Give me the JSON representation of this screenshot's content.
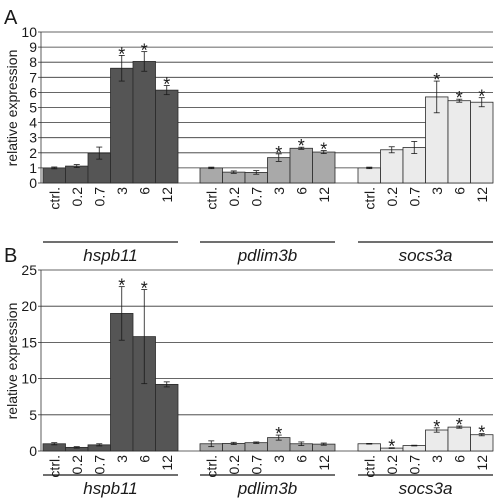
{
  "chart_data": [
    {
      "panel_label": "A",
      "type": "bar",
      "ylabel": "relative expression",
      "ylim": [
        0,
        10
      ],
      "yticks": [
        0,
        1,
        2,
        3,
        4,
        5,
        6,
        7,
        8,
        9,
        10
      ],
      "grid": true,
      "conditions": [
        "ctrl.",
        "0.2",
        "0.7",
        "3",
        "6",
        "12"
      ],
      "groups": [
        {
          "name": "hspb11",
          "color": "#555555",
          "values": [
            1.0,
            1.12,
            1.98,
            7.6,
            8.05,
            6.15
          ],
          "errors": [
            0.06,
            0.1,
            0.4,
            0.85,
            0.65,
            0.3
          ],
          "significant": [
            false,
            false,
            false,
            true,
            true,
            true
          ]
        },
        {
          "name": "pdlim3b",
          "color": "#a9a9a9",
          "values": [
            1.0,
            0.72,
            0.7,
            1.68,
            2.3,
            2.05
          ],
          "errors": [
            0.05,
            0.08,
            0.12,
            0.25,
            0.07,
            0.1
          ],
          "significant": [
            false,
            false,
            false,
            true,
            true,
            true
          ]
        },
        {
          "name": "socs3a",
          "color": "#ebebeb",
          "values": [
            1.0,
            2.2,
            2.35,
            5.7,
            5.45,
            5.35
          ],
          "errors": [
            0.05,
            0.2,
            0.4,
            1.05,
            0.1,
            0.3
          ],
          "significant": [
            false,
            false,
            false,
            true,
            true,
            true
          ]
        }
      ]
    },
    {
      "panel_label": "B",
      "type": "bar",
      "ylabel": "relative expression",
      "ylim": [
        0,
        25
      ],
      "yticks": [
        0,
        5,
        10,
        15,
        20,
        25
      ],
      "grid": true,
      "conditions": [
        "ctrl.",
        "0.2",
        "0.7",
        "3",
        "6",
        "12"
      ],
      "groups": [
        {
          "name": "hspb11",
          "color": "#555555",
          "values": [
            1.0,
            0.5,
            0.85,
            19.0,
            15.8,
            9.2
          ],
          "errors": [
            0.15,
            0.1,
            0.15,
            3.7,
            6.5,
            0.35
          ],
          "significant": [
            false,
            false,
            false,
            true,
            true,
            false
          ]
        },
        {
          "name": "pdlim3b",
          "color": "#a9a9a9",
          "values": [
            1.0,
            1.05,
            1.15,
            1.85,
            1.0,
            0.95
          ],
          "errors": [
            0.4,
            0.15,
            0.1,
            0.35,
            0.25,
            0.15
          ],
          "significant": [
            false,
            false,
            false,
            true,
            false,
            false
          ]
        },
        {
          "name": "socs3a",
          "color": "#ebebeb",
          "values": [
            1.0,
            0.4,
            0.75,
            2.9,
            3.3,
            2.25
          ],
          "errors": [
            0.05,
            0.05,
            0.05,
            0.3,
            0.15,
            0.15
          ],
          "significant": [
            false,
            true,
            false,
            true,
            true,
            true
          ]
        }
      ]
    }
  ]
}
